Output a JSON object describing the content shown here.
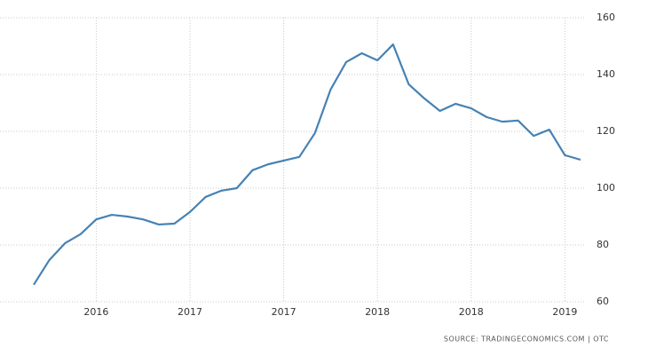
{
  "chart_data": {
    "type": "line",
    "categories": [
      null,
      null,
      null,
      null,
      "2016",
      null,
      null,
      null,
      null,
      null,
      "2017",
      null,
      null,
      null,
      null,
      null,
      "2017",
      null,
      null,
      null,
      null,
      null,
      "2018",
      null,
      null,
      null,
      null,
      null,
      "2018",
      null,
      null,
      null,
      null,
      null,
      "2019",
      null
    ],
    "series": [
      {
        "color": "#4682b4",
        "values": [
          66,
          74.7,
          80.6,
          83.8,
          89,
          90.6,
          90,
          89,
          87.2,
          87.5,
          91.6,
          96.9,
          99.1,
          100,
          106.3,
          108.4,
          109.7,
          111,
          119.4,
          134.7,
          144.4,
          147.5,
          145,
          150.6,
          136.6,
          131.6,
          127.2,
          129.7,
          128.1,
          125,
          123.4,
          123.8,
          118.4,
          120.6,
          111.6,
          110
        ]
      }
    ],
    "ylim": [
      60,
      160
    ],
    "yticks": [
      60,
      80,
      100,
      120,
      140,
      160
    ],
    "grid": true,
    "source": "SOURCE: TRADINGECONOMICS.COM | OTC"
  }
}
